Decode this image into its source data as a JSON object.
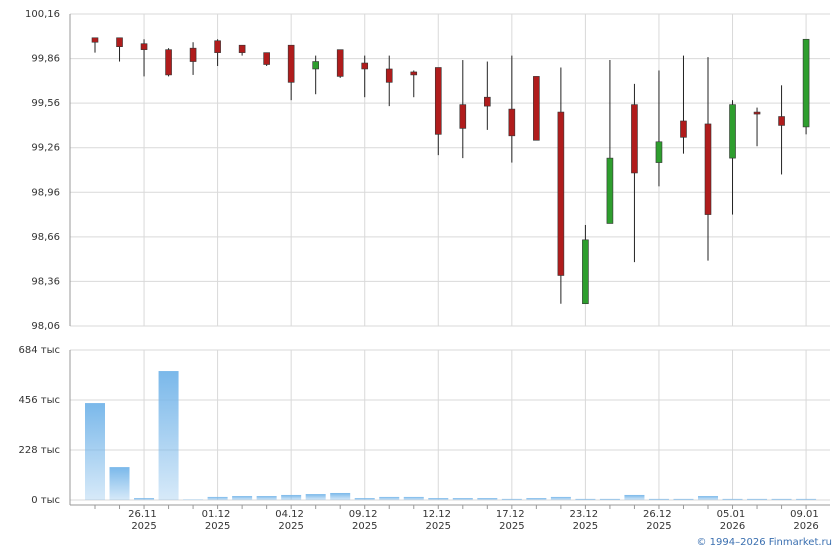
{
  "chart_data": [
    {
      "type": "candlestick",
      "open": [
        100.0,
        100.0,
        99.96,
        99.92,
        99.93,
        99.98,
        99.95,
        99.9,
        99.95,
        99.79,
        99.92,
        99.83,
        99.79,
        99.77,
        99.8,
        99.55,
        99.6,
        99.52,
        99.74,
        99.5,
        98.21,
        98.75,
        99.55,
        99.16,
        99.44,
        99.42,
        99.19,
        99.5,
        99.47,
        99.4
      ],
      "high": [
        100.0,
        100.0,
        99.99,
        99.93,
        99.97,
        99.99,
        99.95,
        99.9,
        99.95,
        99.88,
        99.92,
        99.88,
        99.88,
        99.78,
        99.8,
        99.85,
        99.84,
        99.88,
        99.74,
        99.8,
        98.74,
        99.85,
        99.69,
        99.78,
        99.88,
        99.87,
        99.58,
        99.53,
        99.68,
        99.99
      ],
      "low": [
        99.9,
        99.84,
        99.74,
        99.74,
        99.75,
        99.81,
        99.88,
        99.81,
        99.58,
        99.62,
        99.73,
        99.6,
        99.54,
        99.6,
        99.21,
        99.19,
        99.38,
        99.16,
        99.31,
        98.21,
        98.21,
        98.75,
        98.49,
        99.0,
        99.22,
        98.5,
        98.81,
        99.27,
        99.08,
        99.35
      ],
      "close": [
        99.97,
        99.94,
        99.92,
        99.75,
        99.84,
        99.9,
        99.9,
        99.82,
        99.7,
        99.84,
        99.74,
        99.79,
        99.7,
        99.75,
        99.35,
        99.39,
        99.54,
        99.34,
        99.31,
        98.4,
        98.64,
        99.19,
        99.09,
        99.3,
        99.33,
        98.81,
        99.55,
        99.49,
        99.41,
        99.99
      ],
      "up_color": "#2e9e2e",
      "down_color": "#b01c1c",
      "ylim": [
        98.06,
        100.16
      ],
      "yticks": [
        {
          "value": 98.06,
          "label": "98,06"
        },
        {
          "value": 98.36,
          "label": "98,36"
        },
        {
          "value": 98.66,
          "label": "98,66"
        },
        {
          "value": 98.96,
          "label": "98,96"
        },
        {
          "value": 99.26,
          "label": "99,26"
        },
        {
          "value": 99.56,
          "label": "99,56"
        },
        {
          "value": 99.86,
          "label": "99,86"
        },
        {
          "value": 100.16,
          "label": "100,16"
        }
      ],
      "grid": true
    },
    {
      "type": "bar",
      "categories": [
        null,
        null,
        "26.11 2025",
        null,
        null,
        "01.12 2025",
        null,
        null,
        "04.12 2025",
        null,
        null,
        "09.12 2025",
        null,
        null,
        "12.12 2025",
        null,
        null,
        "17.12 2025",
        null,
        null,
        "23.12 2025",
        null,
        null,
        "26.12 2025",
        null,
        null,
        "05.01 2026",
        null,
        null,
        "09.01 2026"
      ],
      "values": [
        442,
        150,
        9,
        588,
        2,
        14,
        18,
        18,
        23,
        27,
        32,
        9,
        14,
        14,
        9,
        9,
        9,
        5,
        9,
        14,
        5,
        5,
        23,
        5,
        5,
        18,
        5,
        5,
        5,
        5
      ],
      "color": "#7ab8ea",
      "ylim": [
        0,
        684
      ],
      "yticks": [
        {
          "value": 0,
          "label": "0 тыс"
        },
        {
          "value": 228,
          "label": "228 тыс"
        },
        {
          "value": 456,
          "label": "456 тыс"
        },
        {
          "value": 684,
          "label": "684 тыс"
        }
      ],
      "grid": true
    }
  ],
  "copyright": "© 1994–2026 Finmarket.ru"
}
